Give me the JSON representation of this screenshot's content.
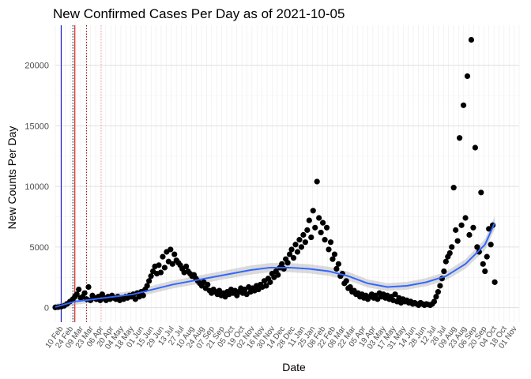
{
  "chart_data": {
    "type": "scatter",
    "title": "New Confirmed Cases Per Day as of 2021-10-05",
    "xlabel": "Date",
    "ylabel": "New Counts Per Day",
    "ylim": [
      -1200,
      23300
    ],
    "yticks": [
      0,
      5000,
      10000,
      15000,
      20000
    ],
    "xticks_note": "dense overlapping date labels (rotated)",
    "x_labels": [
      "10 Feb",
      "24 Feb",
      "09 Mar",
      "23 Mar",
      "06 Apr",
      "20 Apr",
      "04 May",
      "18 May",
      "01 Jun",
      "15 Jun",
      "29 Jun",
      "13 Jul",
      "27 Jul",
      "10 Aug",
      "24 Aug",
      "07 Sep",
      "21 Sep",
      "05 Oct",
      "19 Oct",
      "02 Nov",
      "16 Nov",
      "30 Nov",
      "14 Dec",
      "28 Dec",
      "11 Jan",
      "25 Jan",
      "08 Feb",
      "22 Feb",
      "08 Mar",
      "22 Mar",
      "05 Apr",
      "19 Apr",
      "03 May",
      "17 May",
      "31 May",
      "14 Jun",
      "28 Jun",
      "12 Jul",
      "26 Jul",
      "09 Aug",
      "23 Aug",
      "06 Sep",
      "20 Sep",
      "04 Oct",
      "18 Oct",
      "01 Nov"
    ],
    "vlines": [
      {
        "x": 6,
        "color": "#0000cc",
        "style": "solid"
      },
      {
        "x": 18,
        "color": "#000000",
        "style": "dotted"
      },
      {
        "x": 20,
        "color": "#cc0000",
        "style": "solid"
      },
      {
        "x": 32,
        "color": "#990000",
        "style": "dotted"
      },
      {
        "x": 47,
        "color": "#ff9999",
        "style": "dotted"
      }
    ],
    "smooth_color": "#3366ff",
    "point_color": "#000000",
    "points": [
      [
        0,
        20
      ],
      [
        3,
        40
      ],
      [
        6,
        80
      ],
      [
        9,
        150
      ],
      [
        12,
        300
      ],
      [
        15,
        500
      ],
      [
        18,
        700
      ],
      [
        20,
        900
      ],
      [
        22,
        1100
      ],
      [
        24,
        1500
      ],
      [
        26,
        800
      ],
      [
        28,
        900
      ],
      [
        30,
        1200
      ],
      [
        32,
        700
      ],
      [
        34,
        1700
      ],
      [
        36,
        600
      ],
      [
        38,
        1000
      ],
      [
        40,
        800
      ],
      [
        42,
        700
      ],
      [
        44,
        900
      ],
      [
        46,
        600
      ],
      [
        48,
        1100
      ],
      [
        50,
        800
      ],
      [
        52,
        600
      ],
      [
        54,
        900
      ],
      [
        56,
        700
      ],
      [
        58,
        1000
      ],
      [
        60,
        800
      ],
      [
        62,
        700
      ],
      [
        64,
        900
      ],
      [
        66,
        600
      ],
      [
        68,
        800
      ],
      [
        70,
        700
      ],
      [
        72,
        900
      ],
      [
        74,
        800
      ],
      [
        76,
        1000
      ],
      [
        78,
        900
      ],
      [
        80,
        1100
      ],
      [
        82,
        700
      ],
      [
        84,
        1200
      ],
      [
        86,
        900
      ],
      [
        88,
        1300
      ],
      [
        90,
        1000
      ],
      [
        92,
        1500
      ],
      [
        94,
        1800
      ],
      [
        96,
        2200
      ],
      [
        98,
        2600
      ],
      [
        100,
        3000
      ],
      [
        102,
        3400
      ],
      [
        104,
        2800
      ],
      [
        106,
        3500
      ],
      [
        108,
        2900
      ],
      [
        110,
        4200
      ],
      [
        112,
        3300
      ],
      [
        114,
        4600
      ],
      [
        116,
        3800
      ],
      [
        118,
        4800
      ],
      [
        120,
        3600
      ],
      [
        122,
        4400
      ],
      [
        124,
        3900
      ],
      [
        126,
        3700
      ],
      [
        128,
        3500
      ],
      [
        130,
        3200
      ],
      [
        132,
        2900
      ],
      [
        134,
        3400
      ],
      [
        136,
        3000
      ],
      [
        138,
        2800
      ],
      [
        140,
        2600
      ],
      [
        142,
        2700
      ],
      [
        144,
        2400
      ],
      [
        146,
        2200
      ],
      [
        148,
        2000
      ],
      [
        150,
        1800
      ],
      [
        152,
        2100
      ],
      [
        154,
        1600
      ],
      [
        156,
        1900
      ],
      [
        158,
        1400
      ],
      [
        160,
        1200
      ],
      [
        162,
        1500
      ],
      [
        164,
        1300
      ],
      [
        166,
        1100
      ],
      [
        168,
        1400
      ],
      [
        170,
        1000
      ],
      [
        172,
        1200
      ],
      [
        174,
        900
      ],
      [
        176,
        1300
      ],
      [
        178,
        1100
      ],
      [
        180,
        1500
      ],
      [
        182,
        1200
      ],
      [
        184,
        1400
      ],
      [
        186,
        1000
      ],
      [
        188,
        1300
      ],
      [
        190,
        1600
      ],
      [
        192,
        1200
      ],
      [
        194,
        1500
      ],
      [
        196,
        1100
      ],
      [
        198,
        1700
      ],
      [
        200,
        1300
      ],
      [
        202,
        1600
      ],
      [
        204,
        1400
      ],
      [
        206,
        1800
      ],
      [
        208,
        1500
      ],
      [
        210,
        1900
      ],
      [
        212,
        1700
      ],
      [
        214,
        2200
      ],
      [
        216,
        1800
      ],
      [
        218,
        2400
      ],
      [
        220,
        2100
      ],
      [
        222,
        2800
      ],
      [
        224,
        2500
      ],
      [
        226,
        3000
      ],
      [
        228,
        2700
      ],
      [
        230,
        3300
      ],
      [
        232,
        3600
      ],
      [
        234,
        3200
      ],
      [
        236,
        4000
      ],
      [
        238,
        3700
      ],
      [
        240,
        4400
      ],
      [
        242,
        4800
      ],
      [
        244,
        4100
      ],
      [
        246,
        5200
      ],
      [
        248,
        4600
      ],
      [
        250,
        5600
      ],
      [
        252,
        5000
      ],
      [
        254,
        6000
      ],
      [
        256,
        5400
      ],
      [
        258,
        6400
      ],
      [
        260,
        7200
      ],
      [
        262,
        5800
      ],
      [
        264,
        8000
      ],
      [
        266,
        6600
      ],
      [
        268,
        10400
      ],
      [
        270,
        7400
      ],
      [
        272,
        6200
      ],
      [
        274,
        7000
      ],
      [
        276,
        5600
      ],
      [
        278,
        6600
      ],
      [
        280,
        4800
      ],
      [
        282,
        5400
      ],
      [
        284,
        4000
      ],
      [
        286,
        4400
      ],
      [
        288,
        3200
      ],
      [
        290,
        3600
      ],
      [
        292,
        2600
      ],
      [
        294,
        2800
      ],
      [
        296,
        2000
      ],
      [
        298,
        2200
      ],
      [
        300,
        1600
      ],
      [
        302,
        1700
      ],
      [
        304,
        1300
      ],
      [
        306,
        1400
      ],
      [
        308,
        1100
      ],
      [
        310,
        1200
      ],
      [
        312,
        900
      ],
      [
        314,
        1100
      ],
      [
        316,
        800
      ],
      [
        318,
        1000
      ],
      [
        320,
        700
      ],
      [
        322,
        900
      ],
      [
        324,
        1100
      ],
      [
        326,
        800
      ],
      [
        328,
        1000
      ],
      [
        330,
        700
      ],
      [
        332,
        1200
      ],
      [
        334,
        900
      ],
      [
        336,
        1100
      ],
      [
        338,
        800
      ],
      [
        340,
        1000
      ],
      [
        342,
        700
      ],
      [
        344,
        900
      ],
      [
        346,
        600
      ],
      [
        348,
        1100
      ],
      [
        350,
        500
      ],
      [
        352,
        800
      ],
      [
        354,
        400
      ],
      [
        356,
        700
      ],
      [
        358,
        500
      ],
      [
        360,
        600
      ],
      [
        362,
        400
      ],
      [
        364,
        500
      ],
      [
        366,
        300
      ],
      [
        368,
        400
      ],
      [
        370,
        300
      ],
      [
        372,
        200
      ],
      [
        374,
        400
      ],
      [
        376,
        300
      ],
      [
        378,
        200
      ],
      [
        380,
        300
      ],
      [
        382,
        250
      ],
      [
        384,
        200
      ],
      [
        386,
        300
      ],
      [
        388,
        500
      ],
      [
        390,
        900
      ],
      [
        392,
        1300
      ],
      [
        394,
        1800
      ],
      [
        396,
        2400
      ],
      [
        398,
        3000
      ],
      [
        400,
        3800
      ],
      [
        402,
        4200
      ],
      [
        404,
        4500
      ],
      [
        406,
        5000
      ],
      [
        408,
        9900
      ],
      [
        410,
        6400
      ],
      [
        412,
        5500
      ],
      [
        414,
        14000
      ],
      [
        416,
        6800
      ],
      [
        418,
        16700
      ],
      [
        420,
        7400
      ],
      [
        422,
        19100
      ],
      [
        424,
        6000
      ],
      [
        426,
        22100
      ],
      [
        428,
        6600
      ],
      [
        430,
        13200
      ],
      [
        432,
        5000
      ],
      [
        434,
        4600
      ],
      [
        436,
        9500
      ],
      [
        438,
        3600
      ],
      [
        440,
        3000
      ],
      [
        442,
        4200
      ],
      [
        444,
        6500
      ],
      [
        446,
        5200
      ],
      [
        448,
        6800
      ],
      [
        450,
        2100
      ]
    ],
    "smooth": [
      [
        0,
        50
      ],
      [
        20,
        500
      ],
      [
        40,
        700
      ],
      [
        60,
        900
      ],
      [
        80,
        1100
      ],
      [
        100,
        1500
      ],
      [
        120,
        1900
      ],
      [
        140,
        2200
      ],
      [
        160,
        2500
      ],
      [
        180,
        2800
      ],
      [
        200,
        3100
      ],
      [
        220,
        3300
      ],
      [
        240,
        3300
      ],
      [
        260,
        3200
      ],
      [
        280,
        3000
      ],
      [
        300,
        2600
      ],
      [
        320,
        2000
      ],
      [
        340,
        1700
      ],
      [
        360,
        1800
      ],
      [
        380,
        2100
      ],
      [
        400,
        2600
      ],
      [
        420,
        3600
      ],
      [
        440,
        5200
      ],
      [
        450,
        7000
      ]
    ],
    "x_span": [
      0,
      475
    ]
  }
}
